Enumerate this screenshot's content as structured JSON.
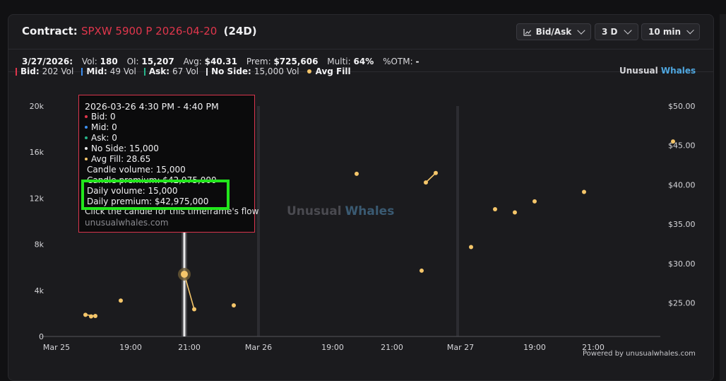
{
  "header": {
    "label": "Contract:",
    "contract": "SPXW 5900 P 2026-04-20",
    "dte": "(24D)",
    "controls": [
      {
        "label": "Bid/Ask",
        "icon": "line-chart-icon"
      },
      {
        "label": "3 D"
      },
      {
        "label": "10 min"
      }
    ]
  },
  "stats": {
    "date": "3/27/2026:",
    "vol_label": "Vol:",
    "vol": "180",
    "oi_label": "OI:",
    "oi": "15,207",
    "avg_label": "Avg:",
    "avg": "$40.31",
    "prem_label": "Prem:",
    "prem": "$725,606",
    "multi_label": "Multi:",
    "multi": "64%",
    "otm_label": "%OTM:",
    "otm": "-"
  },
  "legend": {
    "items": [
      {
        "label": "Bid:",
        "value": "202 Vol",
        "color": "#e0364c"
      },
      {
        "label": "Mid:",
        "value": "49 Vol",
        "color": "#3d8ff0"
      },
      {
        "label": "Ask:",
        "value": "67 Vol",
        "color": "#27b48a"
      },
      {
        "label": "No Side:",
        "value": "15,000 Vol",
        "color": "#e8e8ea"
      }
    ],
    "avg_fill": {
      "label": "Avg Fill",
      "color": "#f5c66a"
    }
  },
  "brand": {
    "part1": "Unusual",
    "part2": "Whales"
  },
  "watermark": {
    "part1": "Unusual",
    "part2": "Whales"
  },
  "chart_data": {
    "type": "bar+scatter",
    "x_ticks": [
      "Mar 25",
      "19:00",
      "21:00",
      "Mar 26",
      "19:00",
      "21:00",
      "Mar 27",
      "19:00",
      "21:00"
    ],
    "left_axis": {
      "ticks": [
        "0",
        "4k",
        "8k",
        "12k",
        "16k",
        "20k"
      ],
      "range": [
        0,
        20000
      ]
    },
    "right_axis": {
      "ticks": [
        "$25.00",
        "$30.00",
        "$35.00",
        "$40.00",
        "$45.00",
        "$50.00"
      ],
      "range": [
        20.75,
        50
      ]
    },
    "volume_bars": [
      {
        "x": "Mar 26 16:30",
        "no_side": 15000
      }
    ],
    "avg_fill": [
      {
        "x": "Mar 25 16:30",
        "y": 23.2
      },
      {
        "x": "Mar 25 18:20",
        "y": 23.3
      },
      {
        "x": "Mar 25 18:50",
        "y": 25.3
      },
      {
        "x": "Mar 26 14:50",
        "y": 23.5
      },
      {
        "x": "Mar 26 15:00",
        "y": 23.35
      },
      {
        "x": "Mar 26 16:30",
        "y": 28.65
      },
      {
        "x": "Mar 26 16:40",
        "y": 24.2
      },
      {
        "x": "Mar 26 17:20",
        "y": 24.7
      },
      {
        "x": "Mar 26 20:30",
        "y": 29.1
      },
      {
        "x": "Mar 26 21:20",
        "y": 32.1
      },
      {
        "x": "Mar 27 16:00",
        "y": 41.4
      },
      {
        "x": "Mar 27 17:10",
        "y": 40.3
      },
      {
        "x": "Mar 27 17:20",
        "y": 41.5
      },
      {
        "x": "Mar 27 18:20",
        "y": 36.9
      },
      {
        "x": "Mar 27 18:40",
        "y": 36.5
      },
      {
        "x": "Mar 27 19:00",
        "y": 37.9
      },
      {
        "x": "Mar 27 19:50",
        "y": 39.1
      },
      {
        "x": "Mar 27 21:20",
        "y": 45.5
      }
    ],
    "line_segments": [
      [
        3,
        4
      ],
      [
        5,
        6
      ],
      [
        11,
        12
      ]
    ]
  },
  "tooltip": {
    "time": "2026-03-26 4:30 PM - 4:40 PM",
    "bid": "Bid: 0",
    "mid": "Mid: 0",
    "ask": "Ask: 0",
    "no_side": "No Side: 15,000",
    "avg_fill": "Avg Fill: 28.65",
    "candle_volume": "Candle volume: 15,000",
    "candle_premium": "Candle premium: $42,975,000",
    "daily_volume": "Daily volume: 15,000",
    "daily_premium": "Daily premium: $42,975,000",
    "hint": "Click the candle for this timeframe's flow",
    "url": "unusualwhales.com"
  },
  "footer": {
    "powered": "Powered by unusualwhales.com"
  }
}
